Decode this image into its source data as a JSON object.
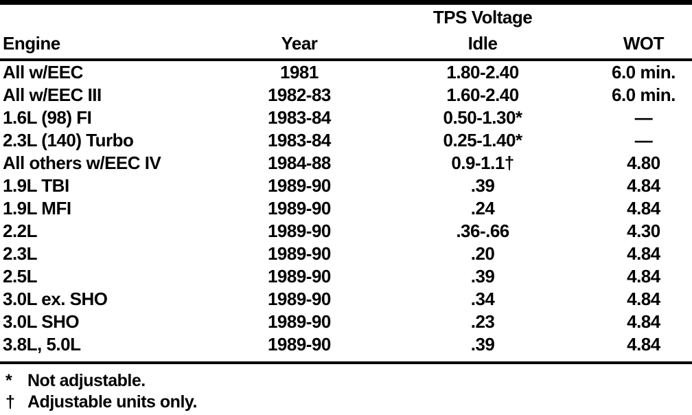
{
  "table": {
    "spanner_header": "TPS Voltage",
    "columns": [
      "Engine",
      "Year",
      "Idle",
      "WOT"
    ],
    "rows": [
      {
        "engine": "All w/EEC",
        "year": "1981",
        "idle": "1.80-2.40",
        "wot": "6.0 min."
      },
      {
        "engine": "All w/EEC III",
        "year": "1982-83",
        "idle": "1.60-2.40",
        "wot": "6.0 min."
      },
      {
        "engine": "1.6L (98) FI",
        "year": "1983-84",
        "idle": "0.50-1.30*",
        "wot": "—"
      },
      {
        "engine": "2.3L (140) Turbo",
        "year": "1983-84",
        "idle": "0.25-1.40*",
        "wot": "—"
      },
      {
        "engine": "All others w/EEC IV",
        "year": "1984-88",
        "idle": "0.9-1.1†",
        "wot": "4.80"
      },
      {
        "engine": "1.9L TBI",
        "year": "1989-90",
        "idle": ".39",
        "wot": "4.84"
      },
      {
        "engine": "1.9L MFI",
        "year": "1989-90",
        "idle": ".24",
        "wot": "4.84"
      },
      {
        "engine": "2.2L",
        "year": "1989-90",
        "idle": ".36-.66",
        "wot": "4.30"
      },
      {
        "engine": "2.3L",
        "year": "1989-90",
        "idle": ".20",
        "wot": "4.84"
      },
      {
        "engine": "2.5L",
        "year": "1989-90",
        "idle": ".39",
        "wot": "4.84"
      },
      {
        "engine": "3.0L ex. SHO",
        "year": "1989-90",
        "idle": ".34",
        "wot": "4.84"
      },
      {
        "engine": "3.0L SHO",
        "year": "1989-90",
        "idle": ".23",
        "wot": "4.84"
      },
      {
        "engine": "3.8L, 5.0L",
        "year": "1989-90",
        "idle": ".39",
        "wot": "4.84"
      }
    ],
    "footnotes": [
      {
        "marker": "*",
        "text": "Not adjustable."
      },
      {
        "marker": "†",
        "text": "Adjustable units only."
      }
    ]
  },
  "colors": {
    "ink": "#000000",
    "paper": "#ffffff"
  }
}
